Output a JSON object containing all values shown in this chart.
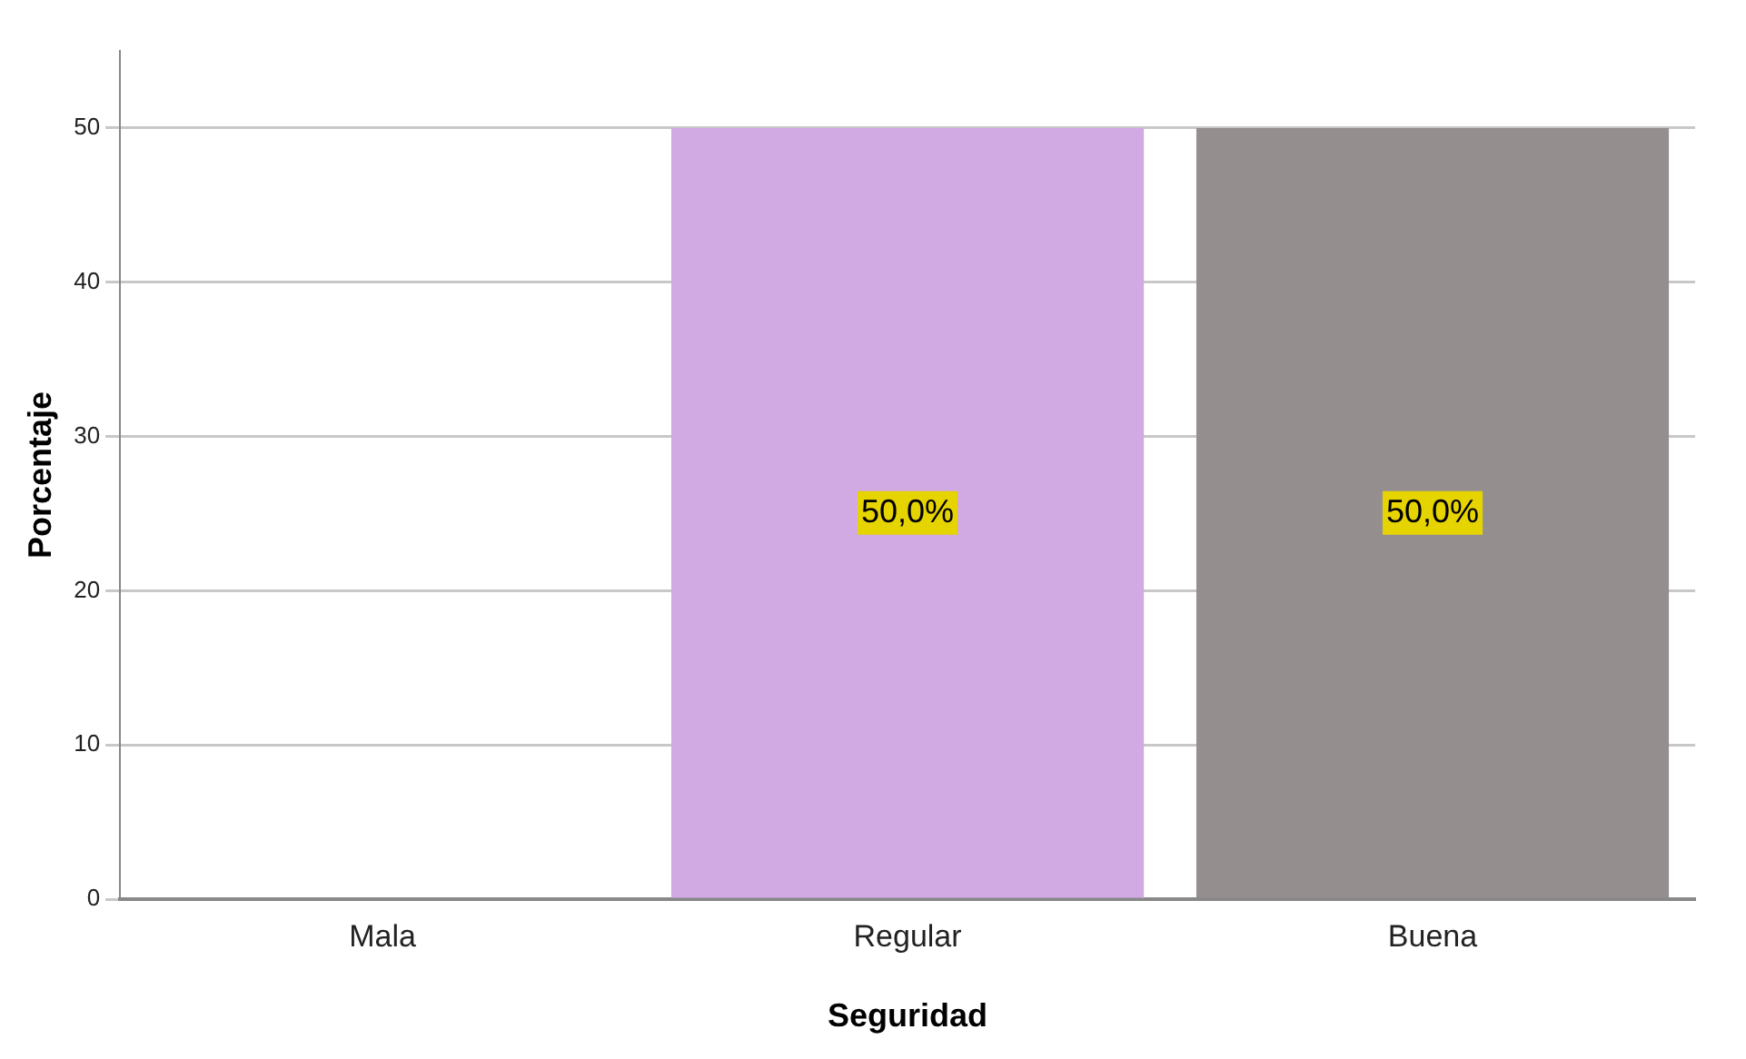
{
  "chart_data": {
    "type": "bar",
    "xlabel": "Seguridad",
    "ylabel": "Porcentaje",
    "categories": [
      "Mala",
      "Regular",
      "Buena"
    ],
    "values": [
      0,
      50,
      50
    ],
    "colors": [
      "#d1a9e3",
      "#d1a9e3",
      "#948f8e"
    ],
    "value_labels": [
      null,
      "50,0%",
      "50,0%"
    ],
    "ylim": [
      0,
      55
    ],
    "yticks": [
      0,
      10,
      20,
      30,
      40,
      50
    ],
    "grid": "y",
    "legend": false
  }
}
